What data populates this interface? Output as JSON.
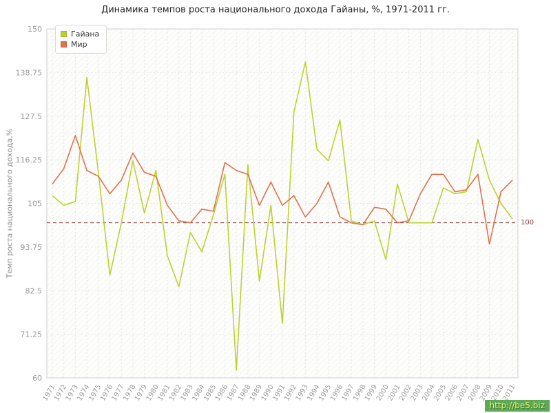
{
  "watermark": "http://be5.biz",
  "chart_data": {
    "type": "line",
    "title": "Динамика темпов роста национального дохода Гайаны, %, 1971-2011 гг.",
    "xlabel": "",
    "ylabel": "Темп роста национального дохода,%",
    "ylim": [
      60,
      150
    ],
    "yticks": [
      60,
      71.25,
      82.5,
      93.75,
      105,
      116.25,
      127.5,
      138.75,
      150
    ],
    "grid": true,
    "legend_position": "top-left",
    "reference_line": {
      "value": 100,
      "label": "100",
      "color": "#8b3535"
    },
    "x": [
      1971,
      1972,
      1973,
      1974,
      1975,
      1976,
      1977,
      1978,
      1979,
      1980,
      1981,
      1982,
      1983,
      1984,
      1985,
      1986,
      1987,
      1988,
      1989,
      1990,
      1991,
      1992,
      1993,
      1994,
      1995,
      1996,
      1997,
      1998,
      1999,
      2000,
      2001,
      2002,
      2003,
      2004,
      2005,
      2006,
      2007,
      2008,
      2009,
      2010,
      2011
    ],
    "series": [
      {
        "name": "Гайана",
        "color": "#bdd12f",
        "values": [
          107,
          104.5,
          105.5,
          137.5,
          113,
          86.5,
          100,
          116,
          102.5,
          113.5,
          91.5,
          83.5,
          97.5,
          92.5,
          102,
          112.5,
          62,
          115,
          85,
          104.5,
          74,
          128.5,
          141.5,
          119,
          116,
          126.5,
          100.5,
          99.5,
          100.5,
          90.5,
          110,
          100,
          100,
          100,
          109,
          107.5,
          108,
          121.5,
          111,
          105,
          101
        ]
      },
      {
        "name": "Мир",
        "color": "#e2704b",
        "values": [
          110,
          114,
          122.5,
          113.5,
          112,
          107.5,
          111,
          118,
          113,
          112,
          104.5,
          100.5,
          100,
          103.5,
          103,
          115.5,
          113.5,
          112.5,
          104.5,
          110.5,
          104.5,
          107,
          101.5,
          105,
          110.5,
          101.5,
          100,
          99.5,
          104,
          103.5,
          100,
          100.5,
          107.5,
          112.5,
          112.5,
          108,
          108.5,
          112.5,
          94.5,
          108,
          111
        ]
      }
    ]
  }
}
